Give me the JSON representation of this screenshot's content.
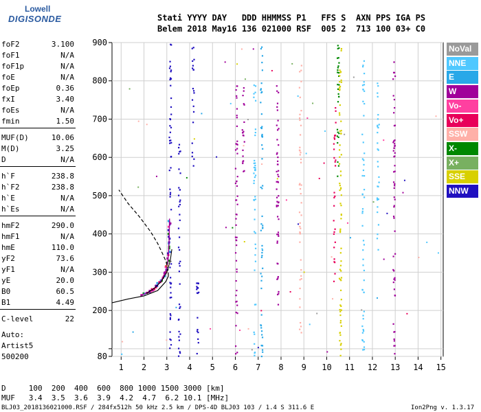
{
  "logo": {
    "line1": "Lowell",
    "line2": "DIGISONDE"
  },
  "header": {
    "line1": "Stati YYYY DAY   DDD HHMMSS P1   FFS S  AXN PPS IGA PS",
    "line2": "Belem 2018 May16 136 021000 RSF  005 2  713 100 03+ C0"
  },
  "params": [
    {
      "k": "foF2",
      "v": "3.100"
    },
    {
      "k": "foF1",
      "v": "N/A"
    },
    {
      "k": "foF1p",
      "v": "N/A"
    },
    {
      "k": "foE",
      "v": "N/A"
    },
    {
      "k": "foEp",
      "v": "0.36"
    },
    {
      "k": "fxI",
      "v": "3.40"
    },
    {
      "k": "foEs",
      "v": "N/A"
    },
    {
      "k": "fmin",
      "v": "1.50"
    },
    {
      "k": "MUF(D)",
      "v": "10.06"
    },
    {
      "k": "M(D)",
      "v": "3.25"
    },
    {
      "k": "D",
      "v": "N/A"
    },
    {
      "k": "h`F",
      "v": "238.8"
    },
    {
      "k": "h`F2",
      "v": "238.8"
    },
    {
      "k": "h`E",
      "v": "N/A"
    },
    {
      "k": "h`Es",
      "v": "N/A"
    },
    {
      "k": "hmF2",
      "v": "290.0"
    },
    {
      "k": "hmF1",
      "v": "N/A"
    },
    {
      "k": "hmE",
      "v": "110.0"
    },
    {
      "k": "yF2",
      "v": "73.6"
    },
    {
      "k": "yF1",
      "v": "N/A"
    },
    {
      "k": "yE",
      "v": "20.0"
    },
    {
      "k": "B0",
      "v": "60.5"
    },
    {
      "k": "B1",
      "v": "4.49"
    },
    {
      "k": "C-level",
      "v": "22"
    }
  ],
  "autoscale": {
    "line1": "Auto:",
    "line2": "Artist5",
    "line3": "500200"
  },
  "legend": [
    {
      "label": "NoVal",
      "color": "#9a9a9a"
    },
    {
      "label": "NNE",
      "color": "#4fc8ff"
    },
    {
      "label": "E",
      "color": "#29a8e8"
    },
    {
      "label": "W",
      "color": "#a0009a"
    },
    {
      "label": "Vo-",
      "color": "#ff40a0"
    },
    {
      "label": "Vo+",
      "color": "#e8005a"
    },
    {
      "label": "SSW",
      "color": "#ffb0a8"
    },
    {
      "label": "X-",
      "color": "#008800"
    },
    {
      "label": "X+",
      "color": "#78b060"
    },
    {
      "label": "SSE",
      "color": "#d8d000"
    },
    {
      "label": "NNW",
      "color": "#2010c0"
    }
  ],
  "footer": {
    "d_row": "D     100  200  400  600  800 1000 1500 3000 [km]",
    "muf_row": "MUF   3.4  3.5  3.6  3.9  4.2  4.7  6.2 10.1 [MHz]",
    "file": "BLJ03_2018136021000.RSF / 284fx512h 50 kHz 2.5 km / DPS-4D BLJ03 103 / 1.4 S 311.6 E",
    "version": "Ion2Png v. 1.3.17"
  },
  "chart_data": {
    "type": "scatter",
    "title": "",
    "xlabel": "",
    "ylabel": "",
    "xlim": [
      0.6,
      15.1
    ],
    "ylim": [
      80,
      900
    ],
    "xticks": [
      1,
      2,
      3,
      4,
      5,
      6,
      7,
      8,
      9,
      10,
      11,
      12,
      13,
      14,
      15
    ],
    "yticks": [
      80,
      100,
      200,
      300,
      400,
      500,
      600,
      700,
      800,
      900
    ],
    "ytick_labels": [
      "80",
      "",
      "200",
      "300",
      "400",
      "500",
      "600",
      "700",
      "800",
      "900"
    ],
    "grid": true,
    "trace_F2": [
      [
        1.9,
        240
      ],
      [
        2.2,
        248
      ],
      [
        2.5,
        260
      ],
      [
        2.75,
        278
      ],
      [
        2.95,
        300
      ],
      [
        3.05,
        330
      ],
      [
        3.1,
        380
      ],
      [
        3.12,
        440
      ]
    ],
    "trace_F2_x": [
      [
        2.1,
        244
      ],
      [
        2.45,
        258
      ],
      [
        2.75,
        275
      ],
      [
        3.0,
        300
      ],
      [
        3.15,
        330
      ],
      [
        3.22,
        360
      ]
    ],
    "profile": [
      [
        0.6,
        220
      ],
      [
        1.3,
        230
      ],
      [
        2.0,
        238
      ],
      [
        2.6,
        252
      ],
      [
        2.95,
        275
      ],
      [
        3.07,
        290
      ],
      [
        3.05,
        310
      ],
      [
        2.95,
        330
      ],
      [
        2.8,
        350
      ],
      [
        2.6,
        375
      ],
      [
        2.3,
        405
      ],
      [
        1.8,
        445
      ],
      [
        1.3,
        480
      ],
      [
        0.9,
        515
      ]
    ],
    "echo_columns": [
      {
        "x": 1.05,
        "ymin": 80,
        "ymax": 100,
        "dir": "NNE"
      },
      {
        "x": 3.15,
        "ymin": 80,
        "ymax": 900,
        "dir": "NNW"
      },
      {
        "x": 3.55,
        "ymin": 80,
        "ymax": 640,
        "dir": "NNW"
      },
      {
        "x": 4.15,
        "ymin": 560,
        "ymax": 900,
        "dir": "NNW"
      },
      {
        "x": 4.35,
        "ymin": 80,
        "ymax": 300,
        "dir": "NNW"
      },
      {
        "x": 6.05,
        "ymin": 80,
        "ymax": 800,
        "dir": "W"
      },
      {
        "x": 6.35,
        "ymin": 560,
        "ymax": 800,
        "dir": "W"
      },
      {
        "x": 6.85,
        "ymin": 80,
        "ymax": 810,
        "dir": "NNE"
      },
      {
        "x": 7.15,
        "ymin": 80,
        "ymax": 900,
        "dir": "E"
      },
      {
        "x": 7.85,
        "ymin": 150,
        "ymax": 800,
        "dir": "W"
      },
      {
        "x": 8.85,
        "ymin": 80,
        "ymax": 840,
        "dir": "SSW"
      },
      {
        "x": 10.35,
        "ymin": 260,
        "ymax": 740,
        "dir": "Vo+"
      },
      {
        "x": 10.5,
        "ymin": 520,
        "ymax": 900,
        "dir": "X-"
      },
      {
        "x": 10.6,
        "ymin": 80,
        "ymax": 900,
        "dir": "SSE"
      },
      {
        "x": 11.6,
        "ymin": 80,
        "ymax": 900,
        "dir": "NNE"
      },
      {
        "x": 12.25,
        "ymin": 350,
        "ymax": 800,
        "dir": "NNE"
      },
      {
        "x": 12.95,
        "ymin": 80,
        "ymax": 870,
        "dir": "W"
      }
    ]
  }
}
